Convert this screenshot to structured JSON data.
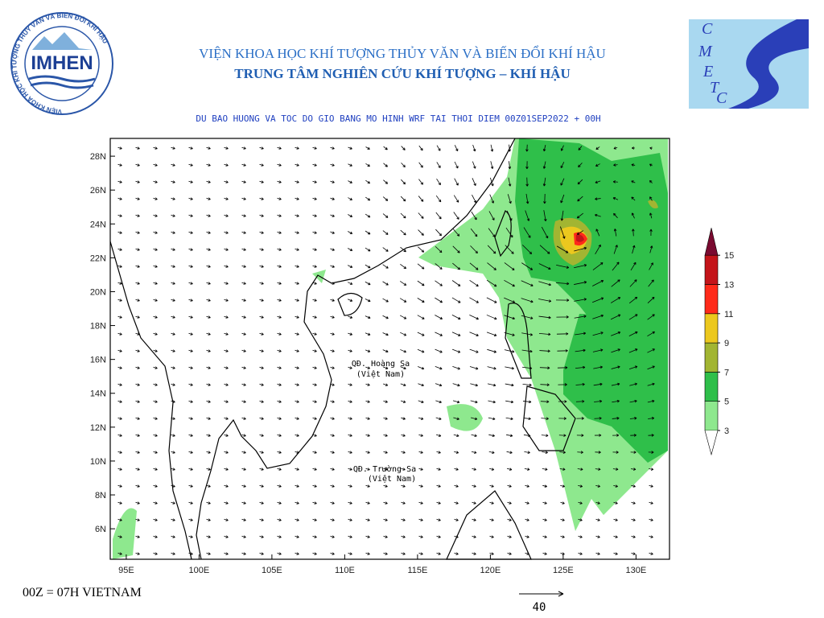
{
  "header": {
    "institute": "VIỆN KHOA HỌC KHÍ TƯỢNG THỦY VĂN VÀ BIẾN ĐỔI KHÍ HẬU",
    "center": "TRUNG TÂM NGHIÊN CỨU KHÍ TƯỢNG – KHÍ HẬU"
  },
  "logo_left": {
    "text": "IMHEN",
    "ring": "VIỆN KHOA HỌC KHÍ TƯỢNG THỦY VĂN VÀ BIẾN ĐỔI KHÍ HẬU"
  },
  "logo_right": {
    "letters": [
      "C",
      "M",
      "E",
      "T",
      "C"
    ]
  },
  "chart_data": {
    "type": "map",
    "title": "DU BAO HUONG VA TOC DO GIO BANG MO HINH WRF TAI THOI DIEM  00Z01SEP2022 + 00H",
    "xlim": [
      93.9,
      132.3
    ],
    "ylim": [
      4.2,
      29.05
    ],
    "xticks": [
      {
        "value": 95,
        "label": "95E"
      },
      {
        "value": 100,
        "label": "100E"
      },
      {
        "value": 105,
        "label": "105E"
      },
      {
        "value": 110,
        "label": "110E"
      },
      {
        "value": 115,
        "label": "115E"
      },
      {
        "value": 120,
        "label": "120E"
      },
      {
        "value": 125,
        "label": "125E"
      },
      {
        "value": 130,
        "label": "130E"
      }
    ],
    "yticks": [
      {
        "value": 6,
        "label": "6N"
      },
      {
        "value": 8,
        "label": "8N"
      },
      {
        "value": 10,
        "label": "10N"
      },
      {
        "value": 12,
        "label": "12N"
      },
      {
        "value": 14,
        "label": "14N"
      },
      {
        "value": 16,
        "label": "16N"
      },
      {
        "value": 18,
        "label": "18N"
      },
      {
        "value": 20,
        "label": "20N"
      },
      {
        "value": 22,
        "label": "22N"
      },
      {
        "value": 24,
        "label": "24N"
      },
      {
        "value": 26,
        "label": "26N"
      },
      {
        "value": 28,
        "label": "28N"
      }
    ],
    "legend": {
      "levels": [
        3,
        5,
        7,
        9,
        11,
        13,
        15
      ],
      "colors": [
        "#8ee88e",
        "#2fbf4a",
        "#a2b532",
        "#ecc81e",
        "#ff2a1a",
        "#c4141a",
        "#7a0a30"
      ]
    },
    "annotations": [
      "QĐ. Hoàng Sa",
      "(Việt Nam)",
      "QĐ. Trường Sa",
      "(Việt Nam)"
    ],
    "note": "00Z = 07H VIETNAM",
    "reference_vector": 40
  }
}
